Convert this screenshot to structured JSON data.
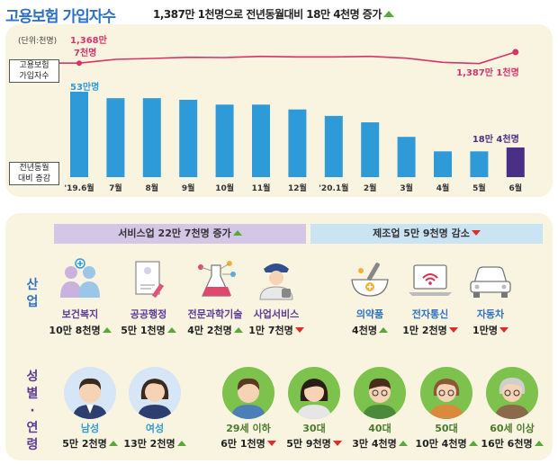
{
  "title": "고용보험 가입자수",
  "subtitle": "1,387만 1천명으로 전년동월대비 18만 4천명 증가",
  "colors": {
    "bar": "#2f9ad8",
    "bar_last": "#4a2f86",
    "line": "#d8336b",
    "up": "#58a83a",
    "down": "#e02b2b",
    "panel": "#f9f4e0"
  },
  "chart_data": {
    "type": "line+bar",
    "unit_label": "(단위:천명)",
    "categories": [
      "'19.6월",
      "7월",
      "8월",
      "9월",
      "10월",
      "11월",
      "12월",
      "'20.1월",
      "2월",
      "3월",
      "4월",
      "5월",
      "6월"
    ],
    "line": {
      "name_lines": [
        "고용보험",
        "가입자수"
      ],
      "first_label_lines": [
        "1,368만",
        "7천명"
      ],
      "last_label": "1,387만 1천명",
      "values": [
        13687,
        13750,
        13765,
        13785,
        13780,
        13800,
        13790,
        13790,
        13800,
        13770,
        13700,
        13680,
        13871
      ]
    },
    "bars": {
      "name_lines": [
        "전년동월",
        "대비 증감"
      ],
      "first_label": "53만명",
      "last_label": "18만 4천명",
      "values": [
        53,
        49,
        49,
        48,
        45,
        45,
        42,
        38,
        34,
        25,
        16,
        16,
        18.4
      ]
    }
  },
  "sections": {
    "service_header": "서비스업 22만 7천명 증가",
    "manufacturing_header": "제조업 5만 9천명 감소",
    "industry_label": [
      "산",
      "업"
    ],
    "gender_age_label": [
      "성",
      "별",
      "·",
      "연",
      "령"
    ]
  },
  "industries": [
    {
      "icon": "health-people-icon",
      "name": "보건복지",
      "value": "10만 8천명",
      "trend": "up"
    },
    {
      "icon": "document-icon",
      "name": "공공행정",
      "value": "5만 1천명",
      "trend": "up"
    },
    {
      "icon": "lab-flask-icon",
      "name": "전문과학기술",
      "value": "4만 2천명",
      "trend": "up"
    },
    {
      "icon": "security-guard-icon",
      "name": "사업서비스",
      "value": "1만 7천명",
      "trend": "down"
    },
    {
      "icon": "medicine-mortar-icon",
      "name": "의약품",
      "value": "4천명",
      "trend": "up"
    },
    {
      "icon": "laptop-wifi-icon",
      "name": "전자통신",
      "value": "1만 2천명",
      "trend": "down"
    },
    {
      "icon": "car-icon",
      "name": "자동차",
      "value": "1만명",
      "trend": "down"
    }
  ],
  "demographics": [
    {
      "icon": "male-avatar-icon",
      "name": "남성",
      "value": "5만 2천명",
      "trend": "up"
    },
    {
      "icon": "female-avatar-icon",
      "name": "여성",
      "value": "13만 2천명",
      "trend": "up"
    },
    {
      "icon": "young-avatar-icon",
      "name": "29세 이하",
      "value": "6만 1천명",
      "trend": "down"
    },
    {
      "icon": "thirties-avatar-icon",
      "name": "30대",
      "value": "5만 9천명",
      "trend": "down"
    },
    {
      "icon": "forties-avatar-icon",
      "name": "40대",
      "value": "3만 4천명",
      "trend": "up"
    },
    {
      "icon": "fifties-avatar-icon",
      "name": "50대",
      "value": "10만 4천명",
      "trend": "up"
    },
    {
      "icon": "senior-avatar-icon",
      "name": "60세 이상",
      "value": "16만 6천명",
      "trend": "up"
    }
  ]
}
